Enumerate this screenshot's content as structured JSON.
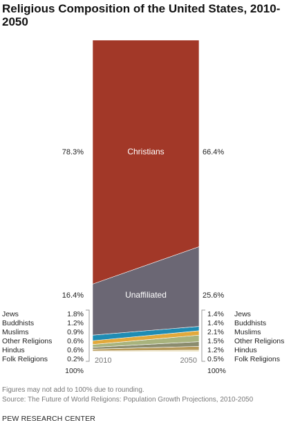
{
  "chart_data": {
    "type": "area",
    "title": "Religious Composition of the United States, 2010-2050",
    "x": [
      "2010",
      "2050"
    ],
    "series": [
      {
        "name": "Folk Religions",
        "values": [
          0.2,
          0.5
        ],
        "left_label": "0.2%",
        "right_label": "0.5%",
        "color": "#ece2c0"
      },
      {
        "name": "Hindus",
        "values": [
          0.6,
          1.2
        ],
        "left_label": "0.6%",
        "right_label": "1.2%",
        "color": "#b79a5a"
      },
      {
        "name": "Other Religions",
        "values": [
          0.6,
          1.5
        ],
        "left_label": "0.6%",
        "right_label": "1.5%",
        "color": "#8b8c6e"
      },
      {
        "name": "Muslims",
        "values": [
          0.9,
          2.1
        ],
        "left_label": "0.9%",
        "right_label": "2.1%",
        "color": "#a8b37d"
      },
      {
        "name": "Buddhists",
        "values": [
          1.2,
          1.4
        ],
        "left_label": "1.2%",
        "right_label": "1.4%",
        "color": "#e2a93b"
      },
      {
        "name": "Jews",
        "values": [
          1.8,
          1.4
        ],
        "left_label": "1.8%",
        "right_label": "1.4%",
        "color": "#1f8cb3"
      },
      {
        "name": "Unaffiliated",
        "values": [
          16.4,
          25.6
        ],
        "left_label": "16.4%",
        "right_label": "25.6%",
        "color": "#6b6774"
      },
      {
        "name": "Christians",
        "values": [
          78.3,
          66.4
        ],
        "left_label": "78.3%",
        "right_label": "66.4%",
        "color": "#a23828"
      }
    ],
    "total_label": "100%",
    "ylim": [
      0,
      100
    ]
  },
  "notes": {
    "rounding": "Figures may not add to 100% due to rounding.",
    "source": "Source: The Future of World Religions: Population Growth Projections, 2010-2050"
  },
  "brand": "PEW RESEARCH CENTER"
}
